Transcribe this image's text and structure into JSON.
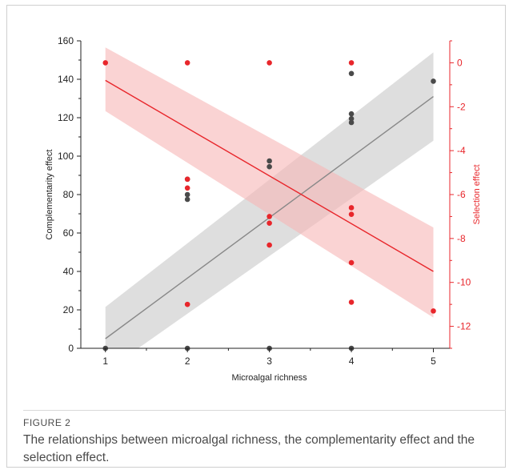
{
  "figure": {
    "label": "FIGURE 2",
    "caption": "The relationships between microalgal richness, the complementarity effect and the selection effect."
  },
  "chart_data": {
    "type": "scatter",
    "x_axis": {
      "label": "Microalgal richness",
      "range": [
        0.7,
        5.2
      ],
      "ticks": [
        1,
        2,
        3,
        4,
        5
      ]
    },
    "y_left": {
      "label": "Complementarity effect",
      "range": [
        0,
        160
      ],
      "ticks": [
        0,
        20,
        40,
        60,
        80,
        100,
        120,
        140,
        160
      ],
      "color": "#222222"
    },
    "y_right": {
      "label": "Selection effect",
      "range": [
        -13,
        1
      ],
      "ticks": [
        0,
        -2,
        -4,
        -6,
        -8,
        -10,
        -12
      ],
      "color": "#e8262b"
    },
    "grid": false,
    "series": [
      {
        "axis": "left",
        "color": "#4a4a4a",
        "band_color": "#c8c8c8",
        "points": [
          [
            1,
            0
          ],
          [
            2,
            88
          ],
          [
            2,
            80
          ],
          [
            2,
            77.5
          ],
          [
            2,
            0
          ],
          [
            3,
            97.5
          ],
          [
            3,
            94.5
          ],
          [
            3,
            0
          ],
          [
            4,
            143
          ],
          [
            4,
            122
          ],
          [
            4,
            119.5
          ],
          [
            4,
            117.5
          ],
          [
            4,
            0
          ],
          [
            5,
            139
          ]
        ],
        "fit": {
          "x": [
            1,
            5
          ],
          "y": [
            5,
            131
          ]
        },
        "ci_band": {
          "x": [
            1,
            5
          ],
          "lower": [
            -12,
            108
          ],
          "upper": [
            21.5,
            154
          ]
        }
      },
      {
        "axis": "right",
        "color": "#e8262b",
        "band_color": "#f7b5b5",
        "points": [
          [
            1,
            0
          ],
          [
            2,
            0
          ],
          [
            2,
            -5.3
          ],
          [
            2,
            -5.7
          ],
          [
            2,
            -11
          ],
          [
            3,
            0
          ],
          [
            3,
            -7
          ],
          [
            3,
            -7.3
          ],
          [
            3,
            -8.3
          ],
          [
            4,
            0
          ],
          [
            4,
            -6.6
          ],
          [
            4,
            -6.9
          ],
          [
            4,
            -9.1
          ],
          [
            4,
            -10.9
          ],
          [
            5,
            -11.3
          ]
        ],
        "fit": {
          "x": [
            1,
            5
          ],
          "y": [
            -0.8,
            -9.5
          ]
        },
        "ci_band": {
          "x": [
            1,
            5
          ],
          "lower": [
            -2.2,
            -11.6
          ],
          "upper": [
            0.7,
            -7.5
          ]
        }
      }
    ]
  }
}
